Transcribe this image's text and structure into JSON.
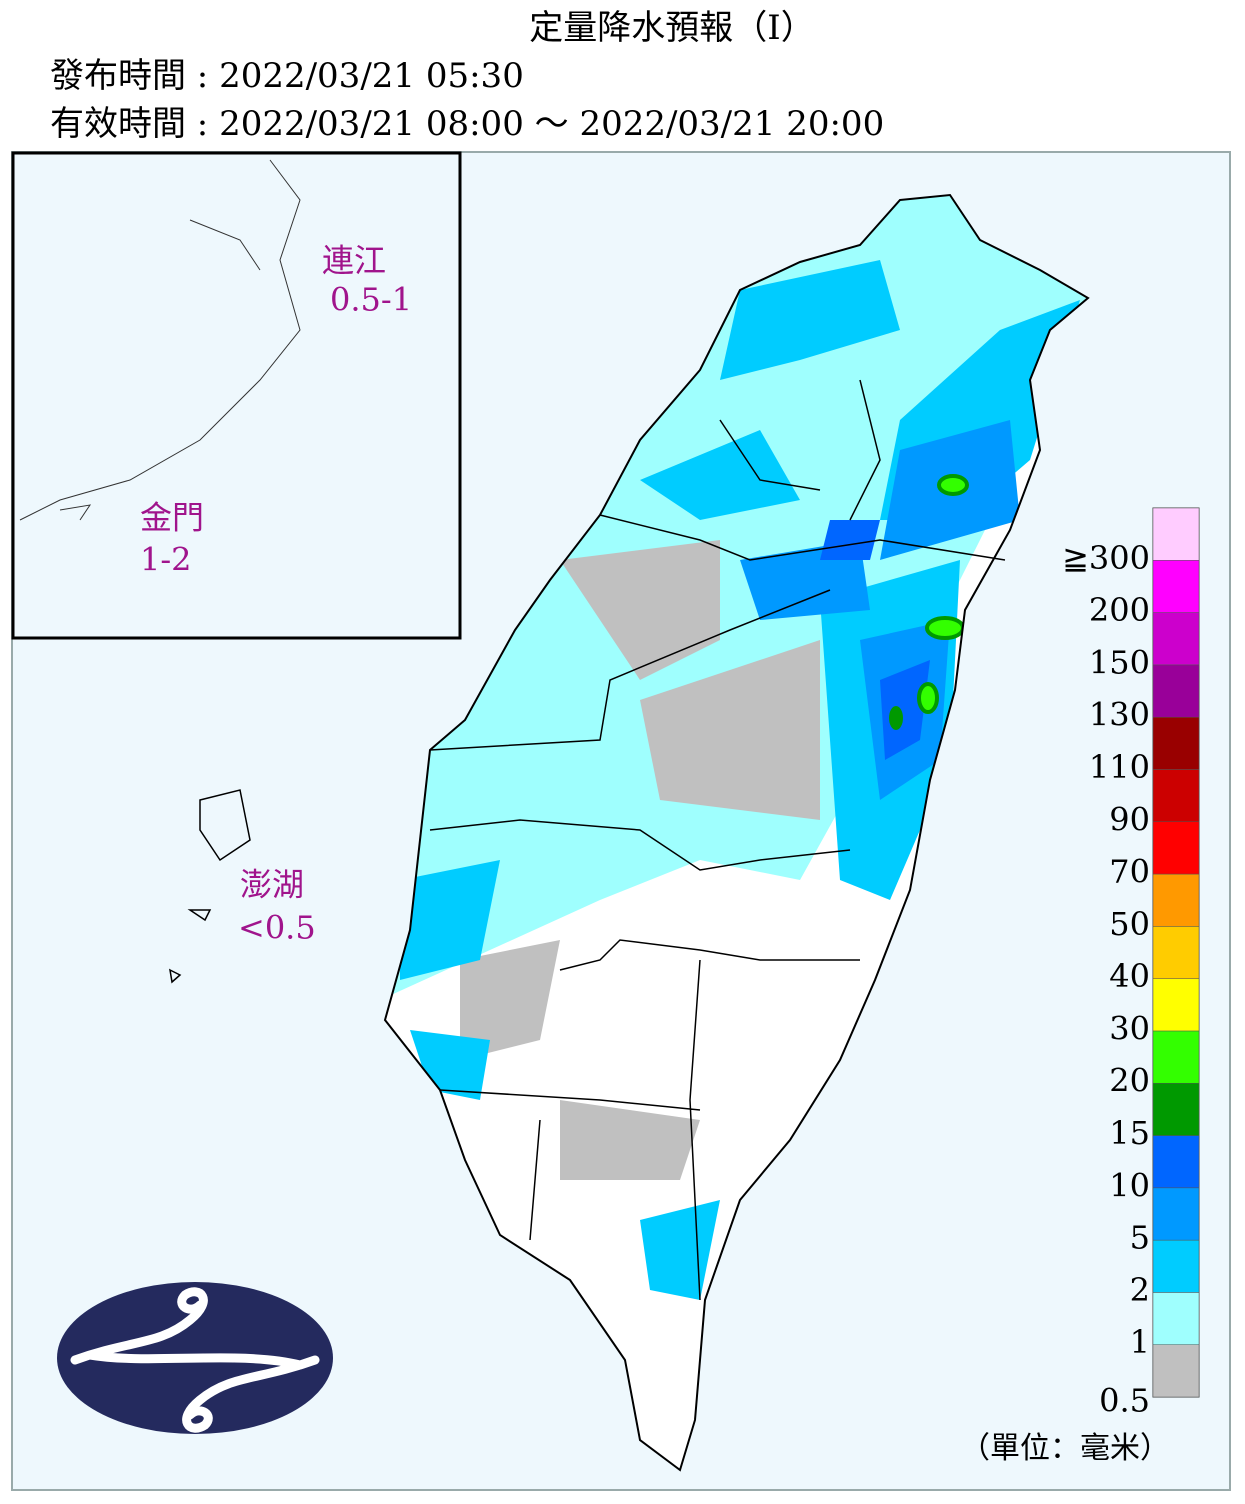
{
  "header": {
    "title": "定量降水預報（Ⅰ）",
    "issued": "發布時間 : 2022/03/21 05:30",
    "valid": "有效時間 : 2022/03/21 08:00 ～ 2022/03/21 20:00"
  },
  "regions": [
    {
      "name": "連江",
      "value": "0.5-1"
    },
    {
      "name": "金門",
      "value": "1-2"
    },
    {
      "name": "澎湖",
      "value": "<0.5"
    }
  ],
  "legend": {
    "unit": "（單位：毫米）",
    "items": [
      {
        "label": "0.5",
        "color": "#c0c0c0"
      },
      {
        "label": "1",
        "color": "#9ffffe"
      },
      {
        "label": "2",
        "color": "#00ccff"
      },
      {
        "label": "5",
        "color": "#0099ff"
      },
      {
        "label": "10",
        "color": "#0066ff"
      },
      {
        "label": "15",
        "color": "#009900"
      },
      {
        "label": "20",
        "color": "#33ff00"
      },
      {
        "label": "30",
        "color": "#ffff00"
      },
      {
        "label": "40",
        "color": "#ffcc00"
      },
      {
        "label": "50",
        "color": "#ff9900"
      },
      {
        "label": "70",
        "color": "#ff0000"
      },
      {
        "label": "90",
        "color": "#cc0000"
      },
      {
        "label": "110",
        "color": "#990000"
      },
      {
        "label": "130",
        "color": "#990099"
      },
      {
        "label": "150",
        "color": "#cc00cc"
      },
      {
        "label": "200",
        "color": "#ff00ff"
      },
      {
        "label": "≧300",
        "color": "#ffccff"
      }
    ]
  }
}
